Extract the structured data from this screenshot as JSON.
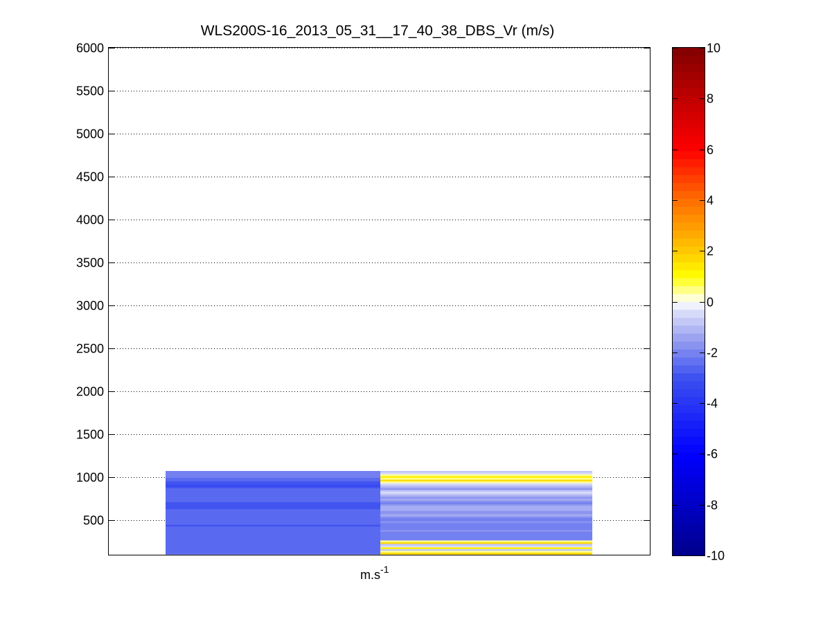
{
  "chart_data": {
    "type": "heatmap",
    "title": "WLS200S-16_2013_05_31__17_40_38_DBS_Vr (m/s)",
    "xlabel": "m.s",
    "xlabel_superscript": "-1",
    "ylabel": "",
    "ylim": [
      100,
      6000
    ],
    "yticks": [
      500,
      1000,
      1500,
      2000,
      2500,
      3000,
      3500,
      4000,
      4500,
      5000,
      5500,
      6000
    ],
    "grid": "horizontal dotted",
    "colorbar": {
      "range": [
        -10,
        10
      ],
      "ticks": [
        -10,
        -8,
        -6,
        -4,
        -2,
        0,
        2,
        4,
        6,
        8,
        10
      ],
      "colormap": "blue-white-yellow-red"
    },
    "columns": [
      {
        "values": [
          -2.0,
          -2.1,
          -1.9,
          -2.2,
          -2.4,
          -2.6,
          -2.8,
          -3.0,
          -3.2,
          -3.0,
          -2.7,
          -2.5,
          -2.4,
          -2.6,
          -2.7,
          -2.5,
          -2.4,
          -2.6,
          -2.8,
          -2.9,
          -3.0,
          -2.8,
          -2.6,
          -2.5,
          -2.6,
          -2.5,
          -2.4,
          -2.3,
          -2.4,
          -2.5,
          -2.7,
          -2.9,
          -2.6,
          -2.5,
          -2.4,
          -2.5,
          -2.6,
          -2.7,
          -2.5,
          -2.4,
          -2.3,
          -2.4,
          -2.5,
          -2.6,
          -2.4,
          -2.3,
          -2.4,
          -2.5
        ]
      },
      {
        "values": [
          -0.9,
          -0.6,
          0.4,
          1.4,
          0.6,
          1.6,
          0.5,
          -0.4,
          -1.0,
          -1.4,
          -1.8,
          -0.8,
          -0.4,
          -0.9,
          -1.3,
          -1.6,
          -1.2,
          -1.5,
          -1.9,
          -1.6,
          -1.3,
          -1.1,
          -1.4,
          -1.7,
          -1.5,
          -1.3,
          -1.6,
          -1.9,
          -2.0,
          -1.8,
          -1.9,
          -2.1,
          -2.0,
          -1.9,
          -1.8,
          -2.1,
          -2.0,
          -2.1,
          -1.9,
          -2.0,
          0.4,
          1.7,
          -0.7,
          -0.4,
          1.3,
          -0.9,
          0.4,
          1.5
        ]
      }
    ]
  }
}
